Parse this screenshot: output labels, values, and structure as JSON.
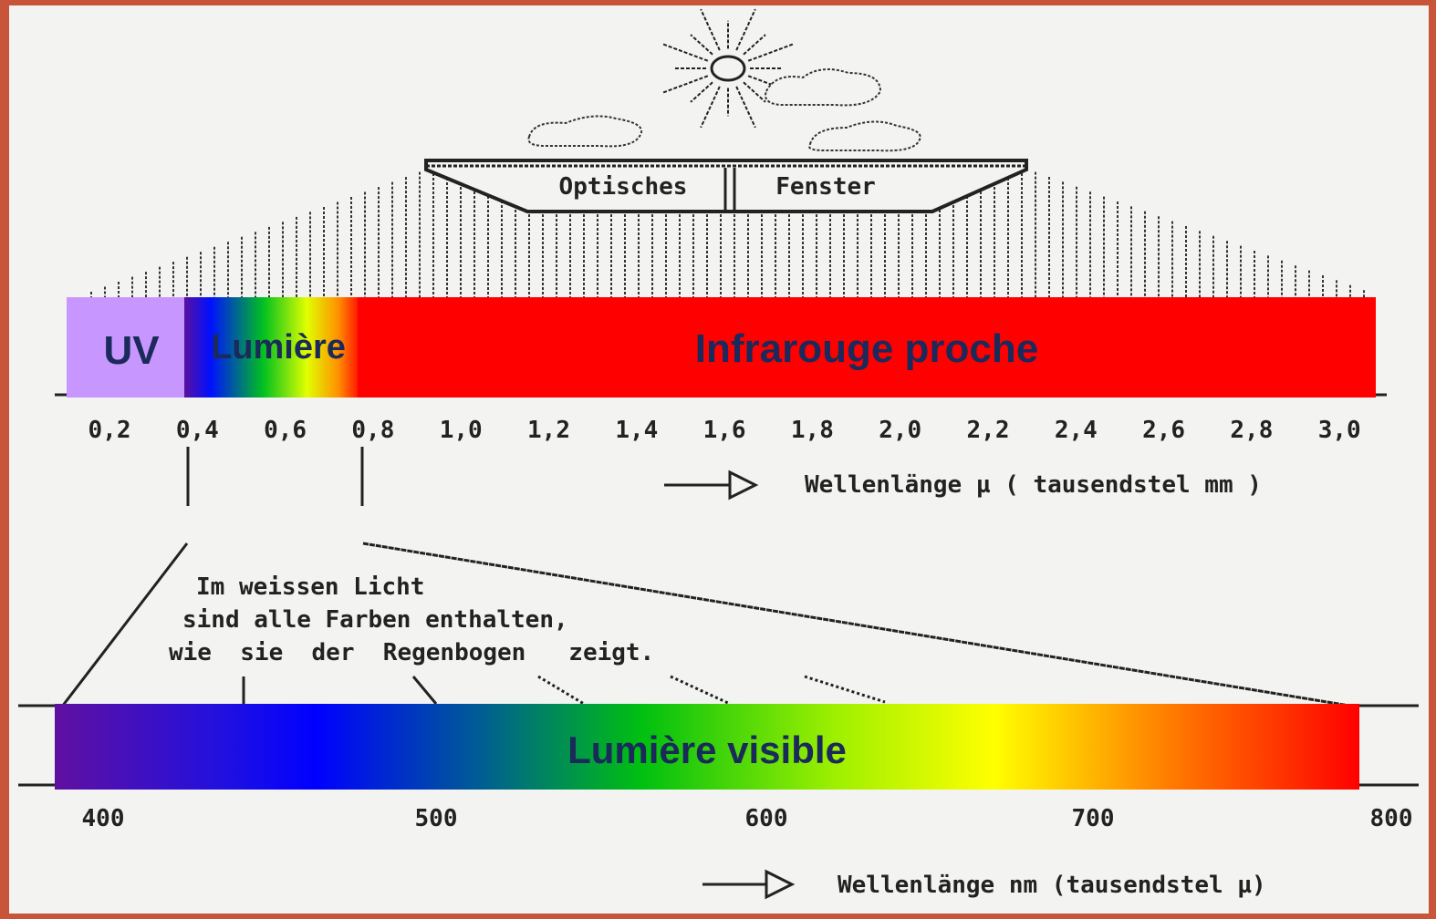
{
  "window": {
    "left": "Optisches",
    "right": "Fenster"
  },
  "top_band": {
    "uv": "UV",
    "light": "Lumière",
    "near_infrared": "Infrarouge proche"
  },
  "upper_axis": {
    "ticks": [
      "0,2",
      "0,4",
      "0,6",
      "0,8",
      "1,0",
      "1,2",
      "1,4",
      "1,6",
      "1,8",
      "2,0",
      "2,2",
      "2,4",
      "2,6",
      "2,8",
      "3,0"
    ],
    "label": "Wellenlänge µ ( tausendstel mm )"
  },
  "caption": {
    "lines": [
      "Im weissen Licht",
      "sind alle Farben enthalten,",
      "wie  sie  der  Regenbogen   zeigt."
    ]
  },
  "lower_band": {
    "label": "Lumière visible"
  },
  "lower_axis": {
    "ticks": [
      "400",
      "500",
      "600",
      "700",
      "800"
    ],
    "label": "Wellenlänge nm (tausendstel µ)"
  }
}
